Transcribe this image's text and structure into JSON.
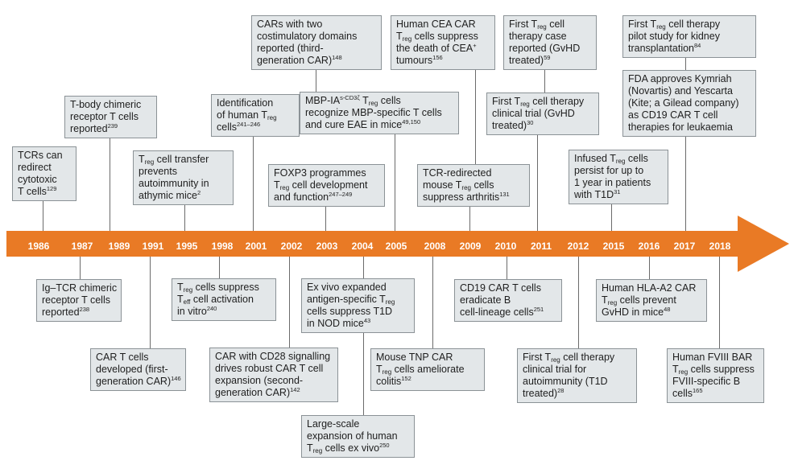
{
  "timeline": {
    "years": [
      "1986",
      "1987",
      "1989",
      "1991",
      "1995",
      "1998",
      "2001",
      "2002",
      "2003",
      "2004",
      "2005",
      "2008",
      "2009",
      "2010",
      "2011",
      "2012",
      "2015",
      "2016",
      "2017",
      "2018"
    ],
    "arrow_color": "#e97a25",
    "box_fill": "#e3e7e9",
    "box_border": "#8b9296",
    "connector_color": "#6b6b6b"
  },
  "events": [
    {
      "id": "e1986",
      "year": "1986",
      "lines": [
        "TCRs can",
        "redirect",
        "cytotoxic",
        "T cells^129"
      ]
    },
    {
      "id": "e1987",
      "year": "1987",
      "lines": [
        "Ig–TCR chimeric",
        "receptor T cells",
        "reported^238"
      ]
    },
    {
      "id": "e1989",
      "year": "1989",
      "lines": [
        "T-body chimeric",
        "receptor T cells",
        "reported^239"
      ]
    },
    {
      "id": "e1991",
      "year": "1991",
      "lines": [
        "CAR T cells",
        "developed (first-",
        "generation CAR)^146"
      ]
    },
    {
      "id": "e1995",
      "year": "1995",
      "lines": [
        "T_reg cell transfer",
        "prevents",
        "autoimmunity in",
        "athymic mice^2"
      ]
    },
    {
      "id": "e1998",
      "year": "1998",
      "lines": [
        "T_reg cells suppress",
        "T_eff cell activation",
        "in vitro^240"
      ]
    },
    {
      "id": "e2001",
      "year": "2001",
      "lines": [
        "Identification",
        "of human T_reg",
        "cells^241–246"
      ]
    },
    {
      "id": "e2002a",
      "year": "2002",
      "lines": [
        "CARs with two",
        "costimulatory domains",
        "reported (third-",
        "generation CAR)^148"
      ]
    },
    {
      "id": "e2002b",
      "year": "2002",
      "lines": [
        "CAR with CD28 signalling",
        "drives robust CAR T cell",
        "expansion (second-",
        "generation CAR)^142"
      ]
    },
    {
      "id": "e2003",
      "year": "2003",
      "lines": [
        "FOXP3 programmes",
        "T_reg cell development",
        "and function^247–249"
      ]
    },
    {
      "id": "e2004a",
      "year": "2004",
      "lines": [
        "Ex vivo expanded",
        "antigen-specific T_reg",
        "cells suppress T1D",
        "in NOD mice^43"
      ]
    },
    {
      "id": "e2004b",
      "year": "2004",
      "lines": [
        "Large-scale",
        "expansion of human",
        "T_reg cells ex vivo^250"
      ]
    },
    {
      "id": "e2005",
      "year": "2005",
      "lines": [
        "MBP-IA^s-CD3ζ T_reg cells",
        "recognize MBP-specific T cells",
        "and cure EAE in mice^49,150"
      ]
    },
    {
      "id": "e2008",
      "year": "2008",
      "lines": [
        "Mouse TNP CAR",
        "T_reg cells ameliorate",
        "colitis^152"
      ]
    },
    {
      "id": "e2009a",
      "year": "2009",
      "lines": [
        "Human CEA CAR",
        "T_reg cells suppress",
        "the death of CEA^+",
        "tumours^156"
      ]
    },
    {
      "id": "e2009b",
      "year": "2009",
      "lines": [
        "TCR-redirected",
        "mouse T_reg cells",
        "suppress arthritis^131"
      ]
    },
    {
      "id": "e2010",
      "year": "2010",
      "lines": [
        "CD19 CAR T cells",
        "eradicate B",
        "cell-lineage cells^251"
      ]
    },
    {
      "id": "e2011a",
      "year": "2011",
      "lines": [
        "First T_reg cell",
        "therapy case",
        "reported (GvHD",
        "treated)^59"
      ]
    },
    {
      "id": "e2011b",
      "year": "2011",
      "lines": [
        "First T_reg cell therapy",
        "clinical trial (GvHD",
        "treated)^30"
      ]
    },
    {
      "id": "e2012",
      "year": "2012",
      "lines": [
        "First T_reg cell therapy",
        "clinical trial for",
        "autoimmunity (T1D",
        "treated)^28"
      ]
    },
    {
      "id": "e2015",
      "year": "2015",
      "lines": [
        "Infused T_reg cells",
        "persist for up to",
        "1 year in patients",
        "with T1D^31"
      ]
    },
    {
      "id": "e2016",
      "year": "2016",
      "lines": [
        "Human HLA-A2 CAR",
        "T_reg cells prevent",
        "GvHD in mice^48"
      ]
    },
    {
      "id": "e2017a",
      "year": "2017",
      "lines": [
        "First T_reg cell therapy",
        "pilot study for kidney",
        "transplantation^84"
      ]
    },
    {
      "id": "e2017b",
      "year": "2017",
      "lines": [
        "FDA approves Kymriah",
        "(Novartis) and Yescarta",
        "(Kite; a Gilead company)",
        "as CD19 CAR T cell",
        "therapies for leukaemia"
      ]
    },
    {
      "id": "e2018",
      "year": "2018",
      "lines": [
        "Human FVIII BAR",
        "T_reg cells suppress",
        "FVIII-specific B",
        "cells^165"
      ]
    }
  ]
}
